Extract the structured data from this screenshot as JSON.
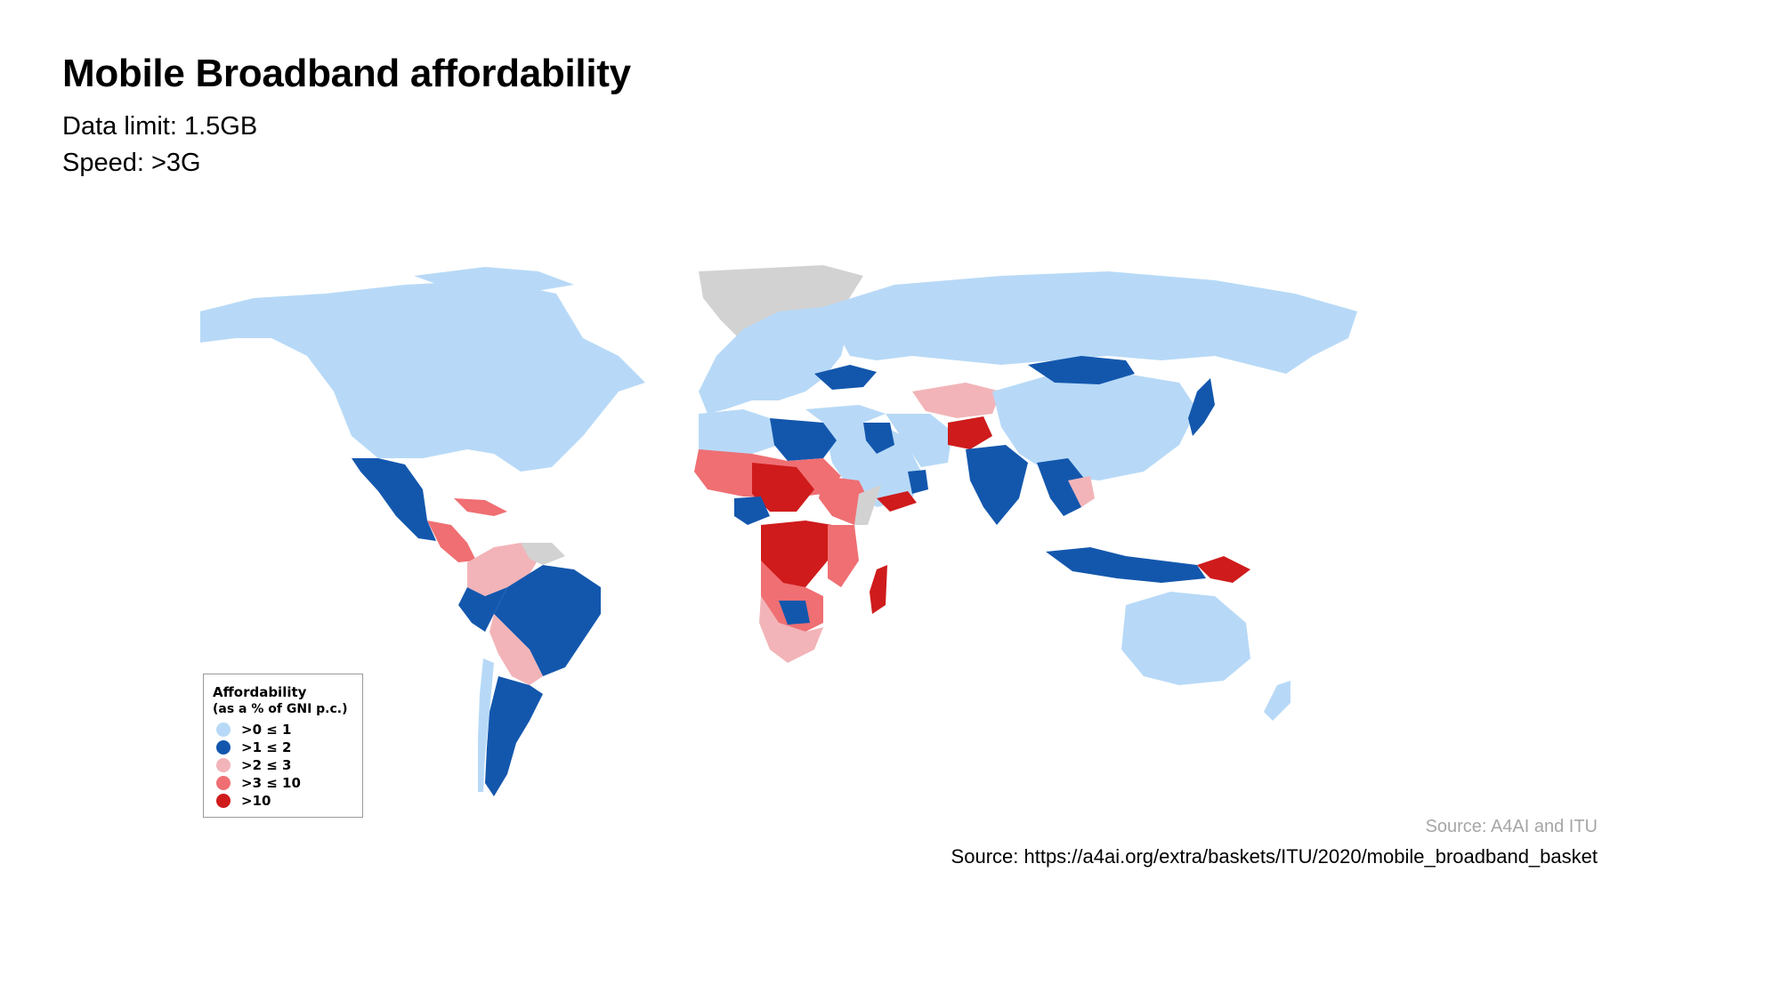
{
  "title": "Mobile Broadband affordability",
  "subtitle_1": "Data limit: 1.5GB",
  "subtitle_2": "Speed: >3G",
  "legend": {
    "title": "Affordability",
    "subtitle": "(as a % of GNI p.c.)",
    "items": [
      {
        "label": ">0 ≤ 1",
        "color": "#b7d9f7"
      },
      {
        "label": ">1 ≤ 2",
        "color": "#1357ad"
      },
      {
        "label": ">2 ≤ 3",
        "color": "#f2b4b8"
      },
      {
        "label": ">3 ≤ 10",
        "color": "#ef6f73"
      },
      {
        "label": ">10",
        "color": "#cf1b1b"
      }
    ],
    "no_data_color": "#d2d2d2"
  },
  "source_credit": "Source: A4AI and ITU",
  "source_url": "Source: https://a4ai.org/extra/baskets/ITU/2020/mobile_broadband_basket"
}
